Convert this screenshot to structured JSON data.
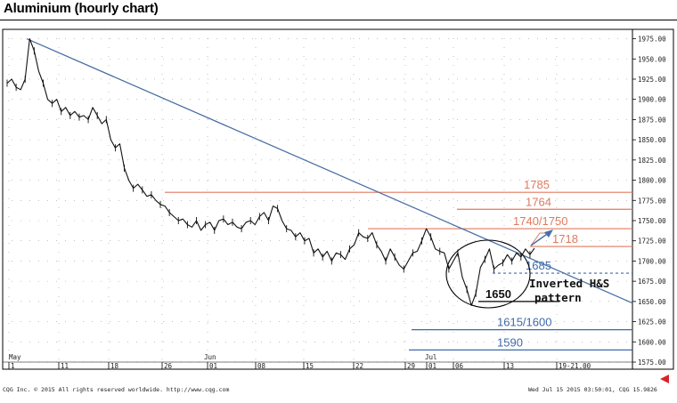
{
  "title": "Aluminium (hourly chart)",
  "footer": {
    "left": "CQG Inc. © 2015 All rights reserved worldwide. http://www.cqg.com",
    "right": "Wed Jul 15 2015 03:50:01, CQG 15.9826"
  },
  "colors": {
    "resistance": "#e07a5f",
    "support": "#3d6aa8",
    "trendline": "#4a6fa5",
    "price": "#111111",
    "grid": "#9a9a9a",
    "arrow_marker": "#d9232a"
  },
  "chart_data": {
    "type": "line",
    "title": "Aluminium (hourly chart)",
    "xlabel": "",
    "ylabel": "",
    "ylim": [
      1575,
      1980
    ],
    "y_ticks": [
      "1975.00",
      "1950.00",
      "1925.00",
      "1900.00",
      "1875.00",
      "1850.00",
      "1825.00",
      "1800.00",
      "1775.00",
      "1750.00",
      "1725.00",
      "1700.00",
      "1675.00",
      "1650.00",
      "1625.00",
      "1600.00",
      "1575.00"
    ],
    "x_ticks": [
      "1",
      "11",
      "18",
      "26",
      "01",
      "08",
      "15",
      "22",
      "29",
      "01",
      "06",
      "13",
      "19-21.00"
    ],
    "month_labels": [
      "May",
      "Jun",
      "Jul"
    ],
    "grid": true,
    "series": [
      {
        "values": [
          1920,
          1925,
          1915,
          1912,
          1925,
          1975,
          1960,
          1935,
          1920,
          1900,
          1895,
          1900,
          1885,
          1890,
          1880,
          1885,
          1878,
          1880,
          1875,
          1890,
          1880,
          1870,
          1875,
          1850,
          1840,
          1845,
          1815,
          1800,
          1790,
          1795,
          1788,
          1780,
          1782,
          1775,
          1770,
          1768,
          1760,
          1755,
          1750,
          1752,
          1745,
          1742,
          1750,
          1738,
          1745,
          1748,
          1738,
          1750,
          1752,
          1745,
          1748,
          1742,
          1740,
          1748,
          1750,
          1745,
          1755,
          1760,
          1750,
          1768,
          1765,
          1750,
          1740,
          1738,
          1730,
          1735,
          1725,
          1728,
          1710,
          1715,
          1705,
          1712,
          1700,
          1710,
          1708,
          1702,
          1715,
          1720,
          1735,
          1730,
          1728,
          1735,
          1720,
          1712,
          1700,
          1715,
          1705,
          1695,
          1690,
          1700,
          1710,
          1712,
          1725,
          1740,
          1730,
          1715,
          1712,
          1710,
          1690,
          1700,
          1710,
          1680,
          1665,
          1645,
          1660,
          1692,
          1702,
          1715,
          1690,
          1695,
          1698,
          1708,
          1700,
          1710,
          1705,
          1715,
          1708,
          1716
        ]
      }
    ],
    "levels": [
      {
        "label": "1785",
        "value": 1785,
        "role": "resistance"
      },
      {
        "label": "1764",
        "value": 1764,
        "role": "resistance"
      },
      {
        "label": "1740/1750",
        "value": 1740,
        "role": "resistance"
      },
      {
        "label": "1718",
        "value": 1718,
        "role": "resistance"
      },
      {
        "label": "1685",
        "value": 1685,
        "role": "support"
      },
      {
        "label": "1650",
        "value": 1650,
        "role": "support"
      },
      {
        "label": "1615/1600",
        "value": 1615,
        "role": "support"
      },
      {
        "label": "1590",
        "value": 1590,
        "role": "support"
      }
    ],
    "trendline": {
      "from": [
        0,
        1975
      ],
      "to": [
        1,
        1648
      ]
    },
    "annotations": [
      "Inverted H&S",
      "pattern"
    ]
  }
}
